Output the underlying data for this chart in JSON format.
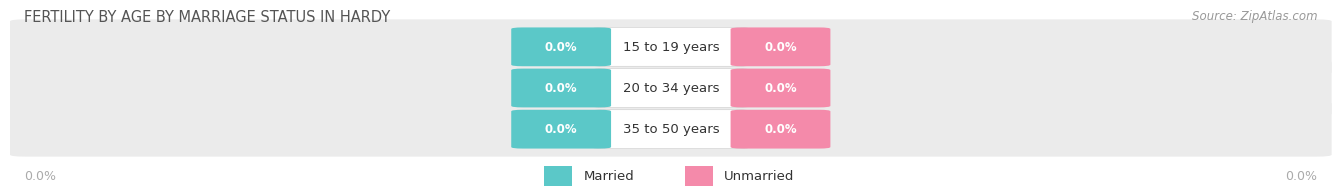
{
  "title": "FERTILITY BY AGE BY MARRIAGE STATUS IN HARDY",
  "source": "Source: ZipAtlas.com",
  "categories": [
    "15 to 19 years",
    "20 to 34 years",
    "35 to 50 years"
  ],
  "married_values": [
    0.0,
    0.0,
    0.0
  ],
  "unmarried_values": [
    0.0,
    0.0,
    0.0
  ],
  "married_color": "#5bc8c8",
  "unmarried_color": "#f48aaa",
  "row_bg_color": "#ebebeb",
  "background_color": "#ffffff",
  "title_color": "#555555",
  "source_color": "#999999",
  "category_label_color": "#333333",
  "axis_label_color": "#aaaaaa",
  "title_fontsize": 10.5,
  "source_fontsize": 8.5,
  "category_fontsize": 9.5,
  "value_fontsize": 8.5,
  "legend_fontsize": 9.5,
  "axis_tick_fontsize": 9
}
